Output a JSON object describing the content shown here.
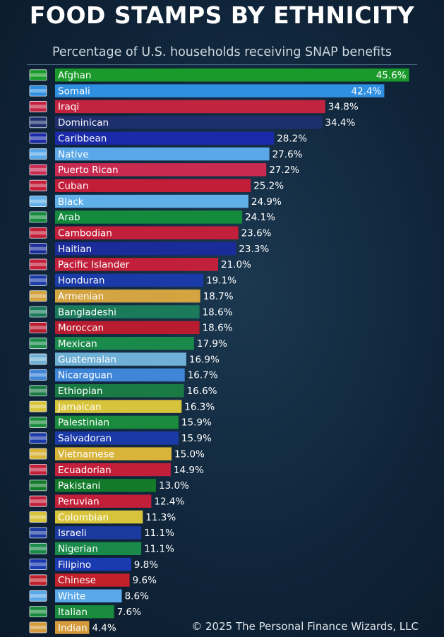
{
  "chart_data": {
    "type": "bar",
    "orientation": "horizontal",
    "title": "FOOD STAMPS BY ETHNICITY",
    "subtitle": "Percentage of U.S. households receiving SNAP benefits",
    "value_suffix": "%",
    "xlim": [
      0,
      50
    ],
    "grid": false,
    "categories": [
      "Afghan",
      "Somali",
      "Iraqi",
      "Dominican",
      "Caribbean",
      "Native",
      "Puerto Rican",
      "Cuban",
      "Black",
      "Arab",
      "Cambodian",
      "Haitian",
      "Pacific Islander",
      "Honduran",
      "Armenian",
      "Bangladeshi",
      "Moroccan",
      "Mexican",
      "Guatemalan",
      "Nicaraguan",
      "Ethiopian",
      "Jamaican",
      "Palestinian",
      "Salvadoran",
      "Vietnamese",
      "Ecuadorian",
      "Pakistani",
      "Peruvian",
      "Colombian",
      "Israeli",
      "Nigerian",
      "Filipino",
      "Chinese",
      "White",
      "Italian",
      "Indian"
    ],
    "values": [
      45.6,
      42.4,
      34.8,
      34.4,
      28.2,
      27.6,
      27.2,
      25.2,
      24.9,
      24.1,
      23.6,
      23.3,
      21.0,
      19.1,
      18.7,
      18.6,
      18.6,
      17.9,
      16.9,
      16.7,
      16.6,
      16.3,
      15.9,
      15.9,
      15.0,
      14.9,
      13.0,
      12.4,
      11.3,
      11.1,
      11.1,
      9.8,
      9.6,
      8.6,
      7.6,
      4.4
    ],
    "labels": [
      "45.6%",
      "42.4%",
      "34.8%",
      "34.4%",
      "28.2%",
      "27.6%",
      "27.2%",
      "25.2%",
      "24.9%",
      "24.1%",
      "23.6%",
      "23.3%",
      "21.0%",
      "19.1%",
      "18.7%",
      "18.6%",
      "18.6%",
      "17.9%",
      "16.9%",
      "16.7%",
      "16.6%",
      "16.3%",
      "15.9%",
      "15.9%",
      "15.0%",
      "14.9%",
      "13.0%",
      "12.4%",
      "11.3%",
      "11.1%",
      "11.1%",
      "9.8%",
      "9.6%",
      "8.6%",
      "7.6%",
      "4.4%"
    ],
    "colors": [
      "#1a9a2a",
      "#2f8fe0",
      "#c22440",
      "#1e2f6e",
      "#1a2aa8",
      "#5aa8e8",
      "#c92a50",
      "#c21e3a",
      "#5fb0e8",
      "#138a3c",
      "#c2203a",
      "#1a2b9a",
      "#c2203a",
      "#1a3aa8",
      "#d4a441",
      "#1a7a5a",
      "#b81c2e",
      "#1a8a4a",
      "#6fb0d6",
      "#3f86d9",
      "#1a7a44",
      "#d8c43a",
      "#1a8a3c",
      "#1a3aa8",
      "#d8b43a",
      "#c2203a",
      "#137a2a",
      "#c2203a",
      "#d8c43a",
      "#1a3aa0",
      "#1a8a4a",
      "#1a3ab0",
      "#c2202a",
      "#5aa8e8",
      "#1a8a3c",
      "#d49a3a"
    ]
  },
  "footer": {
    "copyright": "© 2025 The Personal Finance Wizards, LLC"
  }
}
